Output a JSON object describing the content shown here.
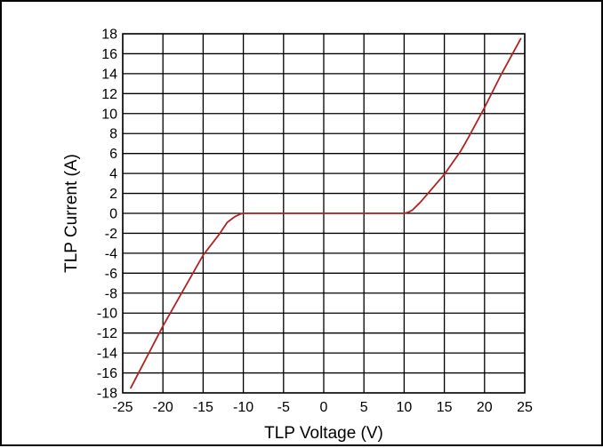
{
  "chart_data": {
    "type": "line",
    "title": "",
    "xlabel": "TLP Voltage (V)",
    "ylabel": "TLP Current (A)",
    "xlim": [
      -25,
      25
    ],
    "ylim": [
      -18,
      18
    ],
    "x_ticks": [
      -25,
      -20,
      -15,
      -10,
      -5,
      0,
      5,
      10,
      15,
      20,
      25
    ],
    "y_ticks": [
      18,
      16,
      14,
      12,
      10,
      8,
      6,
      4,
      2,
      0,
      -2,
      -4,
      -6,
      -8,
      -10,
      -12,
      -14,
      -16,
      -18
    ],
    "x_tick_labels": [
      "-25",
      "-20",
      "-15",
      "-10",
      "-5",
      "0",
      "5",
      "10",
      "15",
      "20",
      "25"
    ],
    "y_tick_labels": [
      "18",
      "16",
      "14",
      "12",
      "10",
      "8",
      "6",
      "4",
      "2",
      "0",
      "-2",
      "-4",
      "-6",
      "-8",
      "-10",
      "-12",
      "-14",
      "-16",
      "-18"
    ],
    "grid": true,
    "legend": "none",
    "series": [
      {
        "color": "#b22222",
        "x": [
          -24,
          -20,
          -15,
          -13,
          -12,
          -11,
          -10.3,
          -10,
          0,
          10,
          10.5,
          11,
          12,
          15,
          17,
          18,
          20,
          22,
          24.5
        ],
        "y": [
          -17.5,
          -11.3,
          -4.2,
          -2.1,
          -0.9,
          -0.3,
          -0.05,
          0,
          0,
          0,
          0.1,
          0.3,
          1.1,
          3.9,
          6.2,
          7.6,
          10.6,
          13.8,
          17.5
        ]
      }
    ]
  }
}
